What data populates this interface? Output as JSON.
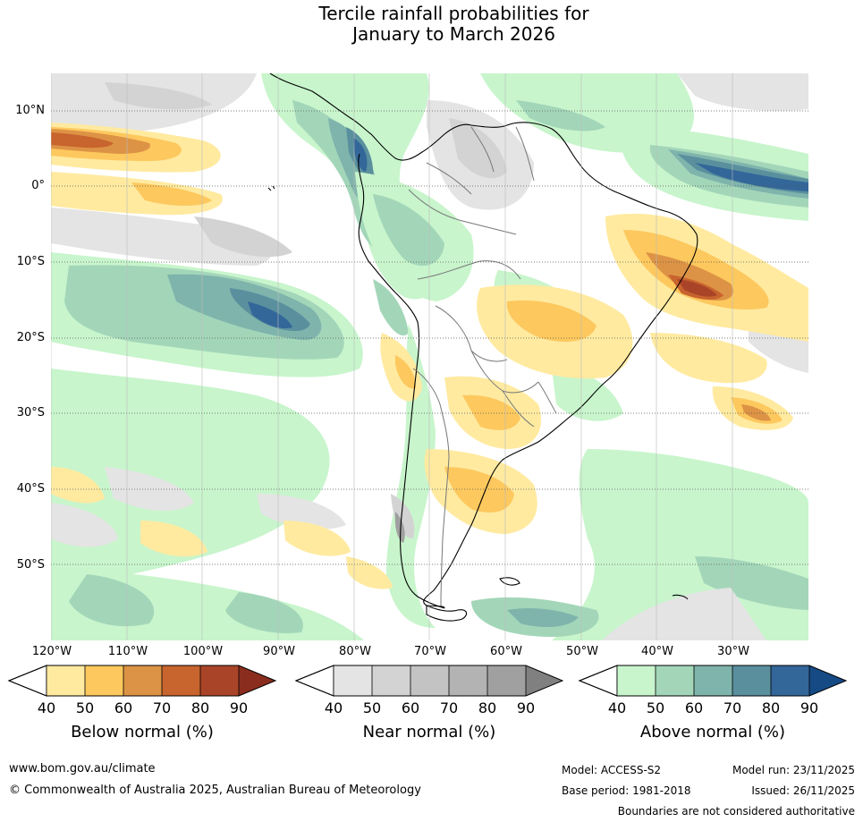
{
  "title": {
    "line1": "Tercile rainfall probabilities for",
    "line2": "January to March 2026"
  },
  "map": {
    "latitude_labels": [
      "10°N",
      "0°",
      "10°S",
      "20°S",
      "30°S",
      "40°S",
      "50°S"
    ],
    "longitude_labels": [
      "120°W",
      "110°W",
      "100°W",
      "90°W",
      "80°W",
      "70°W",
      "60°W",
      "50°W",
      "40°W",
      "30°W"
    ]
  },
  "legends": [
    {
      "title": "Below normal (%)",
      "ticks": [
        "40",
        "50",
        "60",
        "70",
        "80",
        "90"
      ],
      "colors": [
        "#ffeaa0",
        "#fdc85e",
        "#dd9345",
        "#c8642e",
        "#aa4428",
        "#8a2d1e"
      ]
    },
    {
      "title": "Near normal (%)",
      "ticks": [
        "40",
        "50",
        "60",
        "70",
        "80",
        "90"
      ],
      "colors": [
        "#e4e4e4",
        "#d3d3d3",
        "#c3c3c3",
        "#b3b3b3",
        "#a0a0a0",
        "#808080"
      ]
    },
    {
      "title": "Above normal (%)",
      "ticks": [
        "40",
        "50",
        "60",
        "70",
        "80",
        "90"
      ],
      "colors": [
        "#c8f5cc",
        "#a3d6b9",
        "#7fb4ac",
        "#5a909e",
        "#336699",
        "#154a85"
      ]
    }
  ],
  "footer": {
    "website": "www.bom.gov.au/climate",
    "copyright": "© Commonwealth of Australia 2025, Australian Bureau of Meteorology",
    "model": "Model: ACCESS-S2",
    "base_period": "Base period: 1981-2018",
    "model_run": "Model run: 23/11/2025",
    "issued": "Issued: 26/11/2025",
    "disclaimer": "Boundaries are not considered authoritative"
  }
}
